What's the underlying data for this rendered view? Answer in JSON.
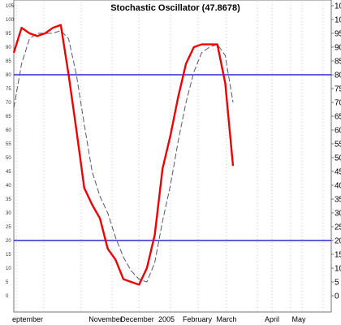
{
  "chart_data": {
    "type": "line",
    "title": "Stochastic Oscillator (47.8678)",
    "ylim": [
      0,
      105
    ],
    "y_ticks": [
      0,
      5,
      10,
      15,
      20,
      25,
      30,
      35,
      40,
      45,
      50,
      55,
      60,
      65,
      70,
      75,
      80,
      85,
      90,
      95,
      100,
      105
    ],
    "x_ticks": [
      "eptember",
      "November",
      "December",
      "2005",
      "February",
      "March",
      "April",
      "May"
    ],
    "reference_lines": [
      80,
      20
    ],
    "grid": "vertical dotted",
    "series": [
      {
        "color": "#ee0000",
        "style": "solid",
        "values": [
          88,
          97,
          95,
          94,
          95,
          97,
          98,
          80,
          60,
          39,
          33,
          28,
          17,
          13,
          6,
          5,
          4,
          10,
          22,
          46,
          58,
          72,
          84,
          90,
          91,
          91,
          91,
          77,
          47
        ]
      },
      {
        "color": "#555577",
        "style": "dashed",
        "values": [
          68,
          84,
          93,
          95,
          95,
          95,
          96,
          93,
          80,
          62,
          45,
          36,
          30,
          21,
          14,
          9,
          6,
          5,
          12,
          27,
          40,
          56,
          70,
          81,
          88,
          90,
          91,
          87,
          70
        ]
      }
    ]
  }
}
